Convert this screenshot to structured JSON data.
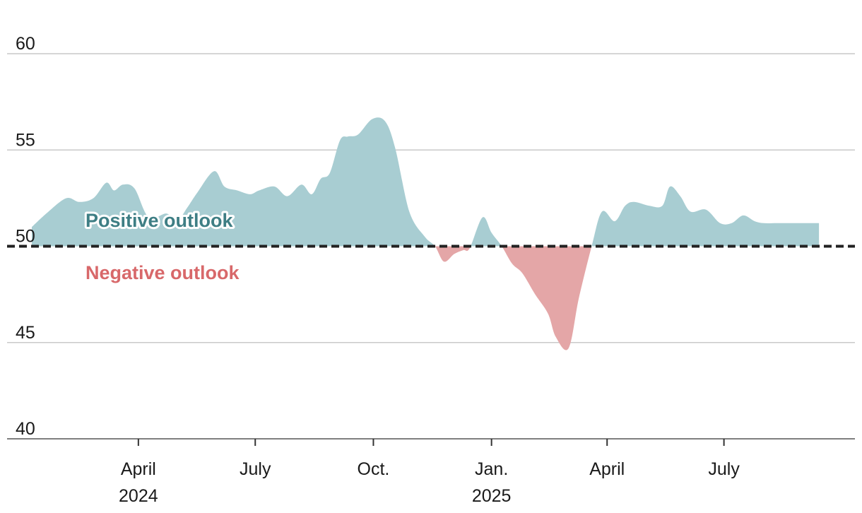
{
  "chart_data": {
    "type": "area",
    "title": "",
    "xlabel": "",
    "ylabel": "",
    "baseline": 50,
    "ylim": [
      40,
      60
    ],
    "yticks": [
      40,
      45,
      50,
      55,
      60
    ],
    "xlim": [
      "2024-01-09",
      "2025-09-30"
    ],
    "xticks": [
      {
        "date": "2024-04-01",
        "label": "April",
        "sublabel": "2024"
      },
      {
        "date": "2024-07-01",
        "label": "July",
        "sublabel": ""
      },
      {
        "date": "2024-10-01",
        "label": "Oct.",
        "sublabel": ""
      },
      {
        "date": "2025-01-01",
        "label": "Jan.",
        "sublabel": "2025"
      },
      {
        "date": "2025-04-01",
        "label": "April",
        "sublabel": ""
      },
      {
        "date": "2025-07-01",
        "label": "July",
        "sublabel": ""
      }
    ],
    "annotations": {
      "positive": "Positive outlook",
      "negative": "Negative outlook"
    },
    "colors": {
      "positive_fill": "#a8cdd2",
      "negative_fill": "#e4a6a7",
      "positive_text": "#3e7e84",
      "negative_text": "#d8686a",
      "baseline": "#222222"
    },
    "grid": true,
    "series": [
      {
        "x": [
          "2024-01-09",
          "2024-01-22",
          "2024-02-05",
          "2024-02-15",
          "2024-02-26",
          "2024-03-07",
          "2024-03-13",
          "2024-03-20",
          "2024-03-29",
          "2024-04-09",
          "2024-04-23",
          "2024-05-01",
          "2024-05-09",
          "2024-05-17",
          "2024-05-30",
          "2024-06-07",
          "2024-06-17",
          "2024-06-27",
          "2024-07-04",
          "2024-07-16",
          "2024-07-26",
          "2024-08-06",
          "2024-08-14",
          "2024-08-21",
          "2024-08-28",
          "2024-09-05",
          "2024-09-11",
          "2024-09-19",
          "2024-09-30",
          "2024-10-10",
          "2024-10-18",
          "2024-10-29",
          "2024-11-10",
          "2024-11-18",
          "2024-11-25",
          "2024-12-03",
          "2024-12-10",
          "2024-12-15",
          "2024-12-25",
          "2025-01-01",
          "2025-01-09",
          "2025-01-17",
          "2025-01-25",
          "2025-02-04",
          "2025-02-14",
          "2025-02-20",
          "2025-03-02",
          "2025-03-10",
          "2025-03-20",
          "2025-03-28",
          "2025-04-07",
          "2025-04-15",
          "2025-04-22",
          "2025-05-04",
          "2025-05-14",
          "2025-05-20",
          "2025-05-28",
          "2025-06-05",
          "2025-06-17",
          "2025-06-28",
          "2025-07-07",
          "2025-07-16",
          "2025-07-25",
          "2025-08-01",
          "2025-08-11",
          "2025-08-22",
          "2025-08-30",
          "2025-09-07",
          "2025-09-13"
        ],
        "values": [
          51.0,
          51.8,
          52.5,
          52.3,
          52.5,
          53.3,
          52.9,
          53.2,
          53.0,
          51.5,
          51.7,
          51.3,
          52.0,
          52.8,
          53.9,
          53.1,
          52.9,
          52.7,
          52.9,
          53.1,
          52.6,
          53.2,
          52.7,
          53.5,
          53.8,
          55.5,
          55.7,
          55.8,
          56.6,
          56.5,
          55.1,
          51.8,
          50.5,
          50.0,
          49.2,
          49.6,
          49.8,
          49.9,
          51.5,
          50.7,
          50.0,
          49.1,
          48.6,
          47.5,
          46.5,
          45.3,
          44.7,
          47.3,
          50.0,
          51.8,
          51.3,
          52.1,
          52.3,
          52.1,
          52.1,
          53.1,
          52.6,
          51.8,
          51.9,
          51.2,
          51.2,
          51.6,
          51.3,
          51.2,
          51.2,
          51.2,
          51.2,
          51.2,
          51.2
        ]
      }
    ]
  }
}
